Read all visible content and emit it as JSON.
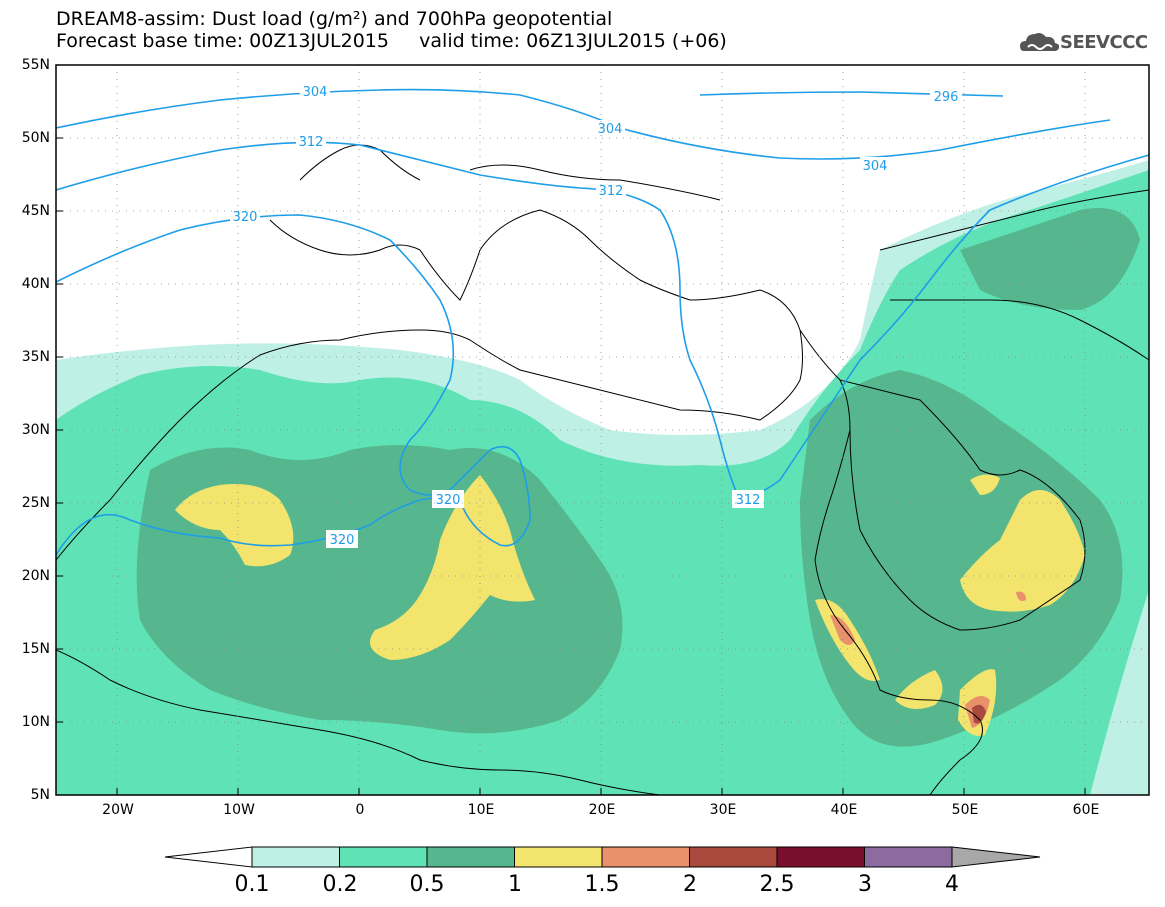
{
  "header": {
    "title_line1": "DREAM8-assim: Dust load (g/m²) and 700hPa geopotential",
    "title_line2": "Forecast base time: 00Z13JUL2015     valid time: 06Z13JUL2015 (+06)",
    "logo_text": "SEEVCCC"
  },
  "map": {
    "lat_labels": [
      "55N",
      "50N",
      "45N",
      "40N",
      "35N",
      "30N",
      "25N",
      "20N",
      "15N",
      "10N",
      "5N"
    ],
    "lon_labels": [
      "20W",
      "10W",
      "0",
      "10E",
      "20E",
      "30E",
      "40E",
      "50E",
      "60E"
    ],
    "contour_labels": [
      "304",
      "312",
      "320",
      "296",
      "304",
      "312",
      "304",
      "320",
      "320",
      "312"
    ],
    "colors": {
      "lvl_01_02": "#bff0e6",
      "lvl_02_05": "#5fe3b6",
      "lvl_05_1": "#56b78f",
      "lvl_1_15": "#f3e46e",
      "lvl_15_2": "#e8916a",
      "lvl_2_25": "#aa4a3f",
      "lvl_25_3": "#7a0e2d",
      "lvl_3_4": "#8d6aa0",
      "contour": "#1f9ee8"
    }
  },
  "colorbar": {
    "labels": [
      "0.1",
      "0.2",
      "0.5",
      "1",
      "1.5",
      "2",
      "2.5",
      "3",
      "4"
    ],
    "colors": [
      "#bff0e6",
      "#5fe3b6",
      "#56b78f",
      "#f3e46e",
      "#e8916a",
      "#aa4a3f",
      "#7a0e2d",
      "#8d6aa0"
    ],
    "under_color": "#ffffff",
    "over_color": "#a8a8a8"
  }
}
